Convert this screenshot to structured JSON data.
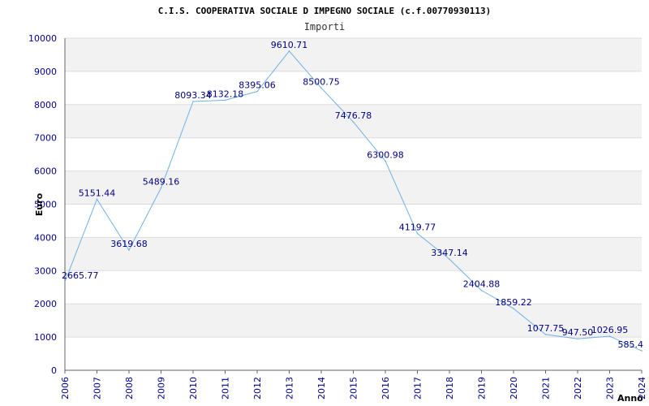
{
  "chart_data": {
    "type": "line",
    "title": "C.I.S. COOPERATIVA SOCIALE D IMPEGNO SOCIALE (c.f.00770930113)",
    "subtitle": "Importi",
    "xlabel": "Anno",
    "ylabel": "Euro",
    "ylim": [
      0,
      10000
    ],
    "yticks": [
      0,
      1000,
      2000,
      3000,
      4000,
      5000,
      6000,
      7000,
      8000,
      9000,
      10000
    ],
    "grid": "horizontal bands",
    "legend": "none",
    "line_color": "#6fb1e6",
    "band_color": "#f2f2f2",
    "tick_color": "#00008b",
    "x": [
      "2006",
      "2007",
      "2008",
      "2009",
      "2010",
      "2011",
      "2012",
      "2013",
      "2014",
      "2015",
      "2016",
      "2017",
      "2018",
      "2019",
      "2020",
      "2021",
      "2022",
      "2023",
      "2024"
    ],
    "values": [
      2665.77,
      5151.44,
      3619.68,
      5489.16,
      8093.34,
      8132.18,
      8395.06,
      9610.71,
      8500.75,
      7476.78,
      6300.98,
      4119.77,
      3347.14,
      2404.88,
      1859.22,
      1077.75,
      947.5,
      1026.95,
      585.4
    ],
    "labels": [
      "2665.77",
      "5151.44",
      "3619.68",
      "5489.16",
      "8093.34",
      "8132.18",
      "8395.06",
      "9610.71",
      "8500.75",
      "7476.78",
      "6300.98",
      "4119.77",
      "3347.14",
      "2404.88",
      "1859.22",
      "1077.75",
      "947.50",
      "1026.95",
      "585.4"
    ]
  }
}
